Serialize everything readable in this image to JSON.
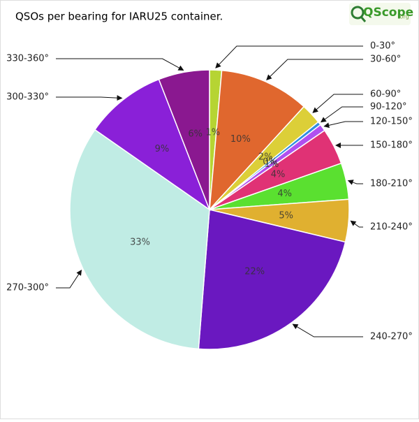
{
  "chart_data": {
    "type": "pie",
    "title": "QSOs per bearing for IARU25 container.",
    "logo": {
      "name": "QScope",
      "suffix": ".org"
    },
    "categories": [
      "0-30°",
      "30-60°",
      "60-90°",
      "90-120°",
      "120-150°",
      "150-180°",
      "180-210°",
      "210-240°",
      "240-270°",
      "270-300°",
      "300-330°",
      "330-360°"
    ],
    "values": [
      1.4,
      10.4,
      2.4,
      0.4,
      0.8,
      4.2,
      4.2,
      4.9,
      22.5,
      33.4,
      9.4,
      5.9
    ],
    "value_labels": [
      "1%",
      "10%",
      "2%",
      "0%",
      "1%",
      "4%",
      "4%",
      "5%",
      "22%",
      "33%",
      "9%",
      "6%"
    ],
    "colors": [
      "#b6d433",
      "#e0672e",
      "#dccf38",
      "#2f8ee0",
      "#b050f0",
      "#e03275",
      "#5ae030",
      "#e0b030",
      "#6a18c0",
      "#c0ece4",
      "#8a20d8",
      "#8a1890"
    ]
  }
}
